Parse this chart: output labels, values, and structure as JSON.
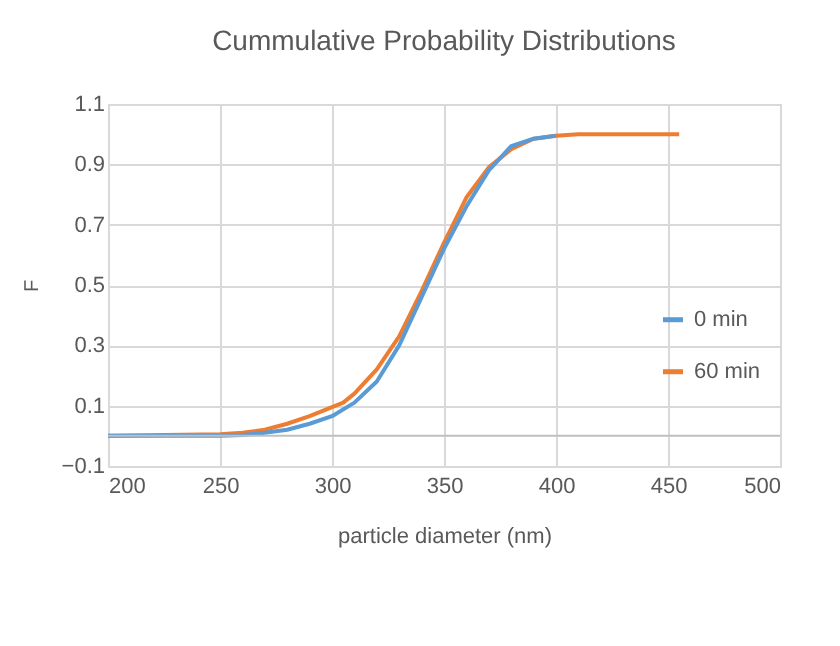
{
  "chart_data": {
    "type": "line",
    "title": "Cummulative Probability Distributions",
    "xlabel": "particle diameter (nm)",
    "ylabel": "F",
    "xlim": [
      200,
      500
    ],
    "xticks": [
      200,
      250,
      300,
      350,
      400,
      450,
      500
    ],
    "ylim": [
      -0.1,
      1.1
    ],
    "yticks": [
      -0.1,
      0.1,
      0.3,
      0.5,
      0.7,
      0.9,
      1.1
    ],
    "grid": true,
    "legend": "right",
    "line_style": "solid",
    "marker": "none",
    "ref_lines": [
      {
        "axis": "y",
        "value": 0,
        "color": "#bfbfbf"
      }
    ],
    "series": [
      {
        "name": "0 min",
        "color": "#5b9bd5",
        "x": [
          200,
          250,
          260,
          270,
          280,
          290,
          300,
          310,
          320,
          330,
          340,
          350,
          360,
          370,
          380,
          390,
          400
        ],
        "values": [
          0,
          0,
          0.003,
          0.01,
          0.02,
          0.04,
          0.065,
          0.11,
          0.18,
          0.3,
          0.46,
          0.62,
          0.76,
          0.88,
          0.96,
          0.985,
          0.995
        ]
      },
      {
        "name": "60 min",
        "color": "#ed7d31",
        "x": [
          200,
          250,
          260,
          270,
          280,
          290,
          300,
          305,
          310,
          320,
          330,
          340,
          350,
          360,
          370,
          380,
          390,
          400,
          410,
          455
        ],
        "values": [
          0,
          0.005,
          0.01,
          0.02,
          0.04,
          0.065,
          0.095,
          0.11,
          0.14,
          0.22,
          0.33,
          0.48,
          0.64,
          0.79,
          0.89,
          0.95,
          0.985,
          0.995,
          1,
          1
        ]
      }
    ]
  }
}
